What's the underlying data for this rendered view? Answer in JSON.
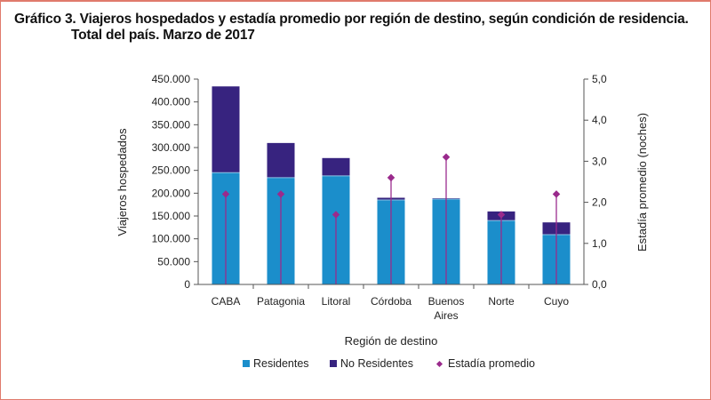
{
  "title": {
    "line1": "Gráfico 3. Viajeros hospedados y estadía promedio por región de destino, según condición de residencia.",
    "line2": "Total del país. Marzo de 2017"
  },
  "colors": {
    "residentes": "#1b8ecb",
    "no_residentes": "#37237f",
    "estadia": "#9a2a8c",
    "axis": "#555555",
    "frame": "#e07a6c"
  },
  "chart_data": {
    "type": "bar",
    "stacked": true,
    "title": "Gráfico 3. Viajeros hospedados y estadía promedio por región de destino, según condición de residencia. Total del país. Marzo de 2017",
    "categories": [
      "CABA",
      "Patagonia",
      "Litoral",
      "Córdoba",
      "Buenos Aires",
      "Norte",
      "Cuyo"
    ],
    "category_labels": [
      [
        "CABA"
      ],
      [
        "Patagonia"
      ],
      [
        "Litoral"
      ],
      [
        "Córdoba"
      ],
      [
        "Buenos",
        "Aires"
      ],
      [
        "Norte"
      ],
      [
        "Cuyo"
      ]
    ],
    "series": [
      {
        "name": "Residentes",
        "type": "bar",
        "axis": "left",
        "values": [
          245000,
          234000,
          238000,
          185000,
          187000,
          140000,
          109000
        ]
      },
      {
        "name": "No Residentes",
        "type": "bar",
        "axis": "left",
        "values": [
          189000,
          76000,
          39000,
          5000,
          2000,
          20000,
          27000
        ]
      },
      {
        "name": "Estadía promedio",
        "type": "scatter",
        "axis": "right",
        "marker": "diamond",
        "values": [
          2.2,
          2.2,
          1.7,
          2.6,
          3.1,
          1.7,
          2.2
        ]
      }
    ],
    "xlabel": "Región de destino",
    "ylabel": "Viajeros hospedados",
    "y2label": "Estadía promedio (noches)",
    "ylim": [
      0,
      450000
    ],
    "y_ticks": [
      "0",
      "50.000",
      "100.000",
      "150.000",
      "200.000",
      "250.000",
      "300.000",
      "350.000",
      "400.000",
      "450.000"
    ],
    "y2lim": [
      0,
      5
    ],
    "y2_ticks": [
      "0,0",
      "1,0",
      "2,0",
      "3,0",
      "4,0",
      "5,0"
    ],
    "grid": false,
    "legend": {
      "position": "bottom",
      "items": [
        "Residentes",
        "No Residentes",
        "Estadía promedio"
      ]
    }
  }
}
